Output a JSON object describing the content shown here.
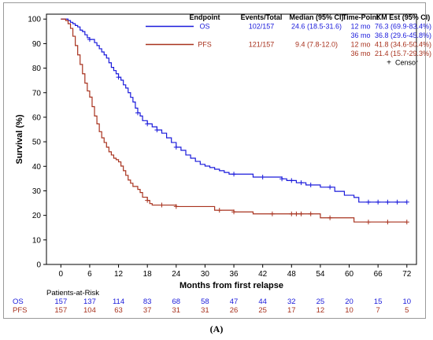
{
  "chart_data": {
    "type": "line",
    "subtype": "kaplan-meier step curves",
    "xlabel": "Months from first relapse",
    "ylabel": "Survival (%)",
    "xlim": [
      -3,
      74
    ],
    "ylim": [
      0,
      102
    ],
    "xticks": [
      0,
      6,
      12,
      18,
      24,
      30,
      36,
      42,
      48,
      54,
      60,
      66,
      72
    ],
    "yticks": [
      0,
      10,
      20,
      30,
      40,
      50,
      60,
      70,
      80,
      90,
      100
    ],
    "grid": false,
    "legend": {
      "placement": "top-right",
      "headers": [
        "Endpoint",
        "Events/Total",
        "Median (95% CI)",
        "Time-Point",
        "KM Est (95% CI)"
      ],
      "rows": [
        {
          "endpoint": "OS",
          "events": "102/157",
          "median": "24.6 (18.5-31.6)",
          "timepoints": [
            "12 mo",
            "36 mo"
          ],
          "estimates": [
            "76.3 (69.9-83.4%)",
            "36.8 (29.6-45.8%)"
          ]
        },
        {
          "endpoint": "PFS",
          "events": "121/157",
          "median": "9.4 (7.8-12.0)",
          "timepoints": [
            "12 mo",
            "36 mo"
          ],
          "estimates": [
            "41.8 (34.6-50.4%)",
            "21.4 (15.7-29.3%)"
          ]
        }
      ],
      "censor_marker": "+",
      "censor_label": "Censor"
    },
    "series": [
      {
        "name": "OS",
        "color": "#1a1adb",
        "steps": [
          [
            0,
            100
          ],
          [
            1.5,
            99.4
          ],
          [
            2,
            98.7
          ],
          [
            2.5,
            98.1
          ],
          [
            3,
            97.4
          ],
          [
            3.5,
            96.8
          ],
          [
            4,
            95.5
          ],
          [
            4.5,
            94.9
          ],
          [
            5,
            93.6
          ],
          [
            5.5,
            92.4
          ],
          [
            6,
            91.7
          ],
          [
            7,
            90.4
          ],
          [
            7.5,
            89.2
          ],
          [
            8,
            87.9
          ],
          [
            8.5,
            86.6
          ],
          [
            9,
            85.4
          ],
          [
            9.5,
            84.1
          ],
          [
            10,
            82.2
          ],
          [
            10.5,
            80.3
          ],
          [
            11,
            79.0
          ],
          [
            11.5,
            77.7
          ],
          [
            12,
            76.3
          ],
          [
            12.5,
            75.1
          ],
          [
            13,
            73.2
          ],
          [
            13.5,
            71.9
          ],
          [
            14,
            70.0
          ],
          [
            14.5,
            68.1
          ],
          [
            15,
            66.2
          ],
          [
            15.5,
            63.7
          ],
          [
            16,
            61.8
          ],
          [
            16.5,
            60.5
          ],
          [
            17,
            58.6
          ],
          [
            18,
            57.3
          ],
          [
            19,
            56.1
          ],
          [
            20,
            54.8
          ],
          [
            21,
            53.5
          ],
          [
            22,
            51.6
          ],
          [
            23,
            49.7
          ],
          [
            24,
            47.8
          ],
          [
            25,
            46.5
          ],
          [
            26,
            44.6
          ],
          [
            27,
            43.3
          ],
          [
            28,
            42.0
          ],
          [
            29,
            40.8
          ],
          [
            30,
            40.1
          ],
          [
            31,
            39.5
          ],
          [
            32,
            38.8
          ],
          [
            33,
            38.2
          ],
          [
            34,
            37.5
          ],
          [
            35,
            36.8
          ],
          [
            40,
            35.6
          ],
          [
            46,
            34.9
          ],
          [
            47,
            34.2
          ],
          [
            49,
            33.3
          ],
          [
            51,
            32.4
          ],
          [
            54,
            31.5
          ],
          [
            57,
            29.8
          ],
          [
            59,
            28.2
          ],
          [
            61,
            27.3
          ],
          [
            62,
            25.4
          ],
          [
            72,
            25.4
          ]
        ],
        "censored": [
          [
            6,
            91.7
          ],
          [
            12,
            76.3
          ],
          [
            16,
            61.8
          ],
          [
            18,
            57.3
          ],
          [
            20,
            54.8
          ],
          [
            24,
            47.8
          ],
          [
            36,
            36.8
          ],
          [
            42,
            35.6
          ],
          [
            46,
            34.9
          ],
          [
            48,
            34.2
          ],
          [
            50,
            33.3
          ],
          [
            52,
            32.4
          ],
          [
            56,
            31.5
          ],
          [
            64,
            25.4
          ],
          [
            66,
            25.4
          ],
          [
            68,
            25.4
          ],
          [
            70,
            25.4
          ],
          [
            72,
            25.4
          ]
        ]
      },
      {
        "name": "PFS",
        "color": "#a8321e",
        "steps": [
          [
            0,
            100
          ],
          [
            1,
            99.4
          ],
          [
            1.5,
            98.1
          ],
          [
            2,
            96.2
          ],
          [
            2.5,
            93.0
          ],
          [
            3,
            89.2
          ],
          [
            3.5,
            85.4
          ],
          [
            4,
            81.5
          ],
          [
            4.5,
            77.7
          ],
          [
            5,
            73.9
          ],
          [
            5.5,
            70.7
          ],
          [
            6,
            68.2
          ],
          [
            6.5,
            64.3
          ],
          [
            7,
            60.5
          ],
          [
            7.5,
            57.3
          ],
          [
            8,
            54.1
          ],
          [
            8.5,
            51.6
          ],
          [
            9,
            49.7
          ],
          [
            9.5,
            47.8
          ],
          [
            10,
            45.9
          ],
          [
            10.5,
            44.6
          ],
          [
            11,
            43.3
          ],
          [
            11.5,
            42.7
          ],
          [
            12,
            41.8
          ],
          [
            12.5,
            40.1
          ],
          [
            13,
            38.2
          ],
          [
            13.5,
            36.3
          ],
          [
            14,
            34.4
          ],
          [
            14.5,
            33.1
          ],
          [
            15,
            31.8
          ],
          [
            16,
            30.6
          ],
          [
            16.5,
            29.3
          ],
          [
            17,
            27.4
          ],
          [
            18,
            26.1
          ],
          [
            18.5,
            24.8
          ],
          [
            19,
            24.2
          ],
          [
            24,
            23.6
          ],
          [
            32,
            22.1
          ],
          [
            36,
            21.4
          ],
          [
            40,
            20.6
          ],
          [
            54,
            19.0
          ],
          [
            61,
            17.3
          ],
          [
            72,
            17.3
          ]
        ],
        "censored": [
          [
            18,
            26.1
          ],
          [
            21,
            24.2
          ],
          [
            24,
            23.6
          ],
          [
            33,
            22.1
          ],
          [
            36,
            21.4
          ],
          [
            44,
            20.6
          ],
          [
            48,
            20.6
          ],
          [
            49,
            20.6
          ],
          [
            50,
            20.6
          ],
          [
            52,
            20.6
          ],
          [
            56,
            19.0
          ],
          [
            64,
            17.3
          ],
          [
            68,
            17.3
          ],
          [
            72,
            17.3
          ]
        ]
      }
    ],
    "risk_table": {
      "title": "Patients-at-Risk",
      "times": [
        0,
        6,
        12,
        18,
        24,
        30,
        36,
        42,
        48,
        54,
        60,
        66,
        72
      ],
      "rows": [
        {
          "label": "OS",
          "color": "#1a1adb",
          "values": [
            157,
            137,
            114,
            83,
            68,
            58,
            47,
            44,
            32,
            25,
            20,
            15,
            10
          ]
        },
        {
          "label": "PFS",
          "color": "#a8321e",
          "values": [
            157,
            104,
            63,
            37,
            31,
            31,
            26,
            25,
            17,
            12,
            10,
            7,
            5
          ]
        }
      ]
    }
  },
  "caption": "(A)"
}
